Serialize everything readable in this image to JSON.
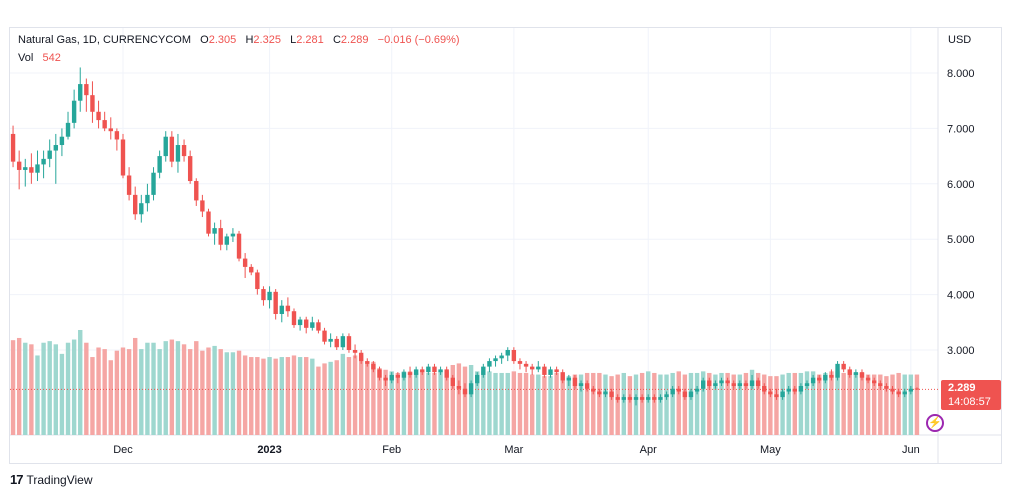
{
  "legend": {
    "symbol": "Natural Gas, 1D, CURRENCYCOM",
    "o_label": "O",
    "o_value": "2.305",
    "h_label": "H",
    "h_value": "2.325",
    "l_label": "L",
    "l_value": "2.281",
    "c_label": "C",
    "c_value": "2.289",
    "change": "−0.016 (−0.69%)",
    "vol_label": "Vol",
    "vol_value": "542"
  },
  "currency": "USD",
  "price_tag": {
    "price": "2.289",
    "countdown": "14:08:57"
  },
  "footer": {
    "logo_glyph": "17",
    "brand": "TradingView"
  },
  "flash_icon": "lightning-icon",
  "colors": {
    "up": "#26a69a",
    "down": "#ef5350",
    "up_vol": "#9ed7cf",
    "down_vol": "#f5a6a4",
    "grid": "#f0f3fa"
  },
  "chart_data": {
    "type": "candlestick",
    "title": "Natural Gas, 1D, CURRENCYCOM",
    "ylabel": "USD",
    "ylim": [
      1.6,
      8.7
    ],
    "yticks": [
      "8.000",
      "7.000",
      "6.000",
      "5.000",
      "4.000",
      "3.000"
    ],
    "xticks": [
      {
        "label": "Dec",
        "index": 18
      },
      {
        "label": "2023",
        "index": 42
      },
      {
        "label": "Feb",
        "index": 62
      },
      {
        "label": "Mar",
        "index": 82
      },
      {
        "label": "Apr",
        "index": 104
      },
      {
        "label": "May",
        "index": 124
      },
      {
        "label": "Jun",
        "index": 147
      }
    ],
    "grid": true,
    "last_price": 2.289,
    "ohlcv": [
      [
        6.9,
        7.05,
        6.3,
        6.4,
        2.98
      ],
      [
        6.4,
        6.6,
        5.9,
        6.25,
        3.05
      ],
      [
        6.25,
        6.45,
        5.95,
        6.3,
        2.9
      ],
      [
        6.3,
        6.55,
        6.0,
        6.2,
        2.85
      ],
      [
        6.2,
        6.6,
        6.05,
        6.35,
        2.5
      ],
      [
        6.35,
        6.6,
        6.1,
        6.45,
        2.9
      ],
      [
        6.45,
        6.8,
        6.3,
        6.6,
        2.95
      ],
      [
        6.6,
        6.9,
        6.0,
        6.7,
        2.85
      ],
      [
        6.7,
        7.0,
        6.5,
        6.85,
        2.55
      ],
      [
        6.85,
        7.3,
        6.8,
        7.1,
        2.9
      ],
      [
        7.1,
        7.7,
        7.0,
        7.5,
        3.0
      ],
      [
        7.5,
        8.1,
        7.3,
        7.8,
        3.3
      ],
      [
        7.8,
        7.9,
        7.3,
        7.6,
        2.9
      ],
      [
        7.6,
        7.85,
        7.1,
        7.3,
        2.45
      ],
      [
        7.3,
        7.5,
        7.0,
        7.15,
        2.75
      ],
      [
        7.15,
        7.3,
        6.95,
        7.0,
        2.7
      ],
      [
        7.0,
        7.2,
        6.8,
        6.95,
        2.35
      ],
      [
        6.95,
        7.0,
        6.6,
        6.8,
        2.65
      ],
      [
        6.8,
        6.9,
        6.1,
        6.15,
        2.75
      ],
      [
        6.15,
        6.3,
        5.7,
        5.8,
        2.7
      ],
      [
        5.8,
        5.95,
        5.35,
        5.45,
        3.05
      ],
      [
        5.45,
        5.8,
        5.3,
        5.65,
        2.7
      ],
      [
        5.65,
        6.0,
        5.5,
        5.8,
        2.9
      ],
      [
        5.8,
        6.3,
        5.7,
        6.2,
        2.9
      ],
      [
        6.2,
        6.6,
        6.1,
        6.5,
        2.7
      ],
      [
        6.5,
        6.95,
        6.4,
        6.85,
        2.95
      ],
      [
        6.85,
        6.95,
        6.3,
        6.4,
        3.0
      ],
      [
        6.4,
        6.9,
        6.2,
        6.7,
        2.95
      ],
      [
        6.7,
        6.8,
        6.4,
        6.5,
        2.85
      ],
      [
        6.5,
        6.6,
        6.0,
        6.05,
        2.7
      ],
      [
        6.05,
        6.1,
        5.6,
        5.7,
        2.95
      ],
      [
        5.7,
        5.8,
        5.4,
        5.5,
        2.65
      ],
      [
        5.5,
        5.55,
        5.05,
        5.1,
        2.75
      ],
      [
        5.1,
        5.3,
        4.9,
        5.2,
        2.8
      ],
      [
        5.2,
        5.35,
        4.8,
        4.9,
        2.7
      ],
      [
        4.9,
        5.1,
        4.8,
        5.05,
        2.6
      ],
      [
        5.05,
        5.2,
        4.95,
        5.1,
        2.6
      ],
      [
        5.1,
        5.15,
        4.6,
        4.65,
        2.65
      ],
      [
        4.65,
        4.75,
        4.3,
        4.5,
        2.5
      ],
      [
        4.5,
        4.55,
        4.35,
        4.4,
        2.45
      ],
      [
        4.4,
        4.45,
        4.0,
        4.1,
        2.45
      ],
      [
        4.1,
        4.15,
        3.8,
        3.9,
        2.4
      ],
      [
        3.9,
        4.15,
        3.75,
        4.05,
        2.45
      ],
      [
        4.05,
        4.1,
        3.55,
        3.65,
        2.4
      ],
      [
        3.65,
        3.9,
        3.5,
        3.8,
        2.45
      ],
      [
        3.8,
        3.95,
        3.6,
        3.7,
        2.45
      ],
      [
        3.7,
        3.75,
        3.4,
        3.45,
        2.5
      ],
      [
        3.45,
        3.6,
        3.35,
        3.55,
        2.45
      ],
      [
        3.55,
        3.6,
        3.3,
        3.4,
        2.45
      ],
      [
        3.4,
        3.6,
        3.35,
        3.5,
        2.4
      ],
      [
        3.5,
        3.55,
        3.3,
        3.35,
        2.15
      ],
      [
        3.35,
        3.4,
        3.1,
        3.15,
        2.25
      ],
      [
        3.15,
        3.3,
        3.05,
        3.2,
        2.3
      ],
      [
        3.2,
        3.25,
        3.0,
        3.05,
        2.35
      ],
      [
        3.05,
        3.3,
        3.0,
        3.25,
        2.55
      ],
      [
        3.25,
        3.3,
        2.95,
        3.0,
        2.45
      ],
      [
        3.0,
        3.1,
        2.85,
        2.95,
        2.5
      ],
      [
        2.95,
        3.0,
        2.75,
        2.8,
        2.5
      ],
      [
        2.8,
        2.85,
        2.7,
        2.75,
        2.25
      ],
      [
        2.75,
        2.8,
        2.6,
        2.65,
        2.3
      ],
      [
        2.65,
        2.7,
        2.45,
        2.5,
        2.1
      ],
      [
        2.5,
        2.55,
        2.35,
        2.45,
        2.05
      ],
      [
        2.45,
        2.6,
        2.4,
        2.55,
        2.0
      ],
      [
        2.55,
        2.6,
        2.4,
        2.5,
        1.95
      ],
      [
        2.5,
        2.65,
        2.45,
        2.6,
        2.0
      ],
      [
        2.6,
        2.7,
        2.5,
        2.55,
        2.0
      ],
      [
        2.55,
        2.7,
        2.5,
        2.65,
        1.95
      ],
      [
        2.65,
        2.7,
        2.55,
        2.6,
        2.0
      ],
      [
        2.6,
        2.75,
        2.55,
        2.7,
        1.95
      ],
      [
        2.7,
        2.75,
        2.55,
        2.6,
        1.95
      ],
      [
        2.6,
        2.7,
        2.55,
        2.65,
        2.0
      ],
      [
        2.65,
        2.7,
        2.45,
        2.5,
        2.0
      ],
      [
        2.5,
        2.55,
        2.3,
        2.35,
        2.2
      ],
      [
        2.35,
        2.45,
        2.2,
        2.3,
        2.25
      ],
      [
        2.3,
        2.4,
        2.15,
        2.2,
        2.15
      ],
      [
        2.2,
        2.45,
        2.15,
        2.4,
        2.2
      ],
      [
        2.4,
        2.6,
        2.35,
        2.55,
        2.0
      ],
      [
        2.55,
        2.75,
        2.5,
        2.7,
        2.0
      ],
      [
        2.7,
        2.85,
        2.6,
        2.8,
        2.0
      ],
      [
        2.8,
        2.9,
        2.7,
        2.85,
        1.95
      ],
      [
        2.85,
        2.95,
        2.75,
        2.9,
        1.95
      ],
      [
        2.9,
        3.05,
        2.8,
        3.0,
        1.95
      ],
      [
        3.0,
        3.05,
        2.75,
        2.8,
        2.0
      ],
      [
        2.8,
        2.85,
        2.65,
        2.75,
        1.95
      ],
      [
        2.75,
        2.8,
        2.6,
        2.7,
        1.95
      ],
      [
        2.7,
        2.75,
        2.55,
        2.65,
        1.9
      ],
      [
        2.65,
        2.8,
        2.6,
        2.7,
        1.9
      ],
      [
        2.7,
        2.75,
        2.5,
        2.55,
        1.85
      ],
      [
        2.55,
        2.7,
        2.5,
        2.65,
        1.85
      ],
      [
        2.65,
        2.7,
        2.55,
        2.6,
        1.95
      ],
      [
        2.6,
        2.65,
        2.4,
        2.45,
        1.9
      ],
      [
        2.45,
        2.55,
        2.35,
        2.5,
        1.85
      ],
      [
        2.5,
        2.55,
        2.3,
        2.35,
        1.9
      ],
      [
        2.35,
        2.45,
        2.25,
        2.4,
        1.9
      ],
      [
        2.4,
        2.45,
        2.25,
        2.3,
        1.95
      ],
      [
        2.3,
        2.35,
        2.2,
        2.25,
        1.95
      ],
      [
        2.25,
        2.3,
        2.15,
        2.2,
        1.95
      ],
      [
        2.2,
        2.3,
        2.15,
        2.25,
        1.9
      ],
      [
        2.25,
        2.3,
        2.1,
        2.15,
        1.85
      ],
      [
        2.15,
        2.2,
        2.05,
        2.1,
        1.9
      ],
      [
        2.1,
        2.2,
        2.05,
        2.15,
        1.95
      ],
      [
        2.15,
        2.2,
        2.05,
        2.1,
        1.85
      ],
      [
        2.1,
        2.2,
        2.0,
        2.15,
        1.9
      ],
      [
        2.15,
        2.2,
        2.05,
        2.1,
        1.95
      ],
      [
        2.1,
        2.2,
        2.05,
        2.15,
        2.0
      ],
      [
        2.15,
        2.2,
        2.05,
        2.1,
        1.95
      ],
      [
        2.1,
        2.2,
        2.05,
        2.15,
        1.9
      ],
      [
        2.15,
        2.25,
        2.1,
        2.2,
        1.9
      ],
      [
        2.2,
        2.35,
        2.15,
        2.3,
        1.95
      ],
      [
        2.3,
        2.35,
        2.2,
        2.25,
        2.0
      ],
      [
        2.25,
        2.3,
        2.1,
        2.15,
        1.9
      ],
      [
        2.15,
        2.3,
        2.1,
        2.25,
        1.95
      ],
      [
        2.25,
        2.35,
        2.2,
        2.3,
        1.95
      ],
      [
        2.3,
        2.5,
        2.25,
        2.45,
        2.0
      ],
      [
        2.45,
        2.5,
        2.3,
        2.35,
        1.95
      ],
      [
        2.35,
        2.45,
        2.3,
        2.4,
        1.9
      ],
      [
        2.4,
        2.5,
        2.35,
        2.45,
        1.95
      ],
      [
        2.45,
        2.5,
        2.35,
        2.4,
        1.95
      ],
      [
        2.4,
        2.45,
        2.3,
        2.35,
        1.9
      ],
      [
        2.35,
        2.45,
        2.3,
        2.4,
        1.9
      ],
      [
        2.4,
        2.45,
        2.3,
        2.35,
        1.95
      ],
      [
        2.35,
        2.55,
        2.3,
        2.45,
        2.05
      ],
      [
        2.45,
        2.5,
        2.3,
        2.35,
        1.95
      ],
      [
        2.35,
        2.4,
        2.2,
        2.25,
        1.9
      ],
      [
        2.25,
        2.3,
        2.15,
        2.2,
        1.85
      ],
      [
        2.2,
        2.3,
        2.1,
        2.15,
        1.85
      ],
      [
        2.15,
        2.3,
        2.1,
        2.25,
        1.9
      ],
      [
        2.25,
        2.35,
        2.2,
        2.3,
        1.95
      ],
      [
        2.3,
        2.35,
        2.2,
        2.25,
        1.95
      ],
      [
        2.25,
        2.4,
        2.2,
        2.35,
        1.95
      ],
      [
        2.35,
        2.45,
        2.3,
        2.4,
        2.0
      ],
      [
        2.4,
        2.55,
        2.35,
        2.5,
        2.0
      ],
      [
        2.5,
        2.55,
        2.4,
        2.45,
        1.9
      ],
      [
        2.45,
        2.6,
        2.4,
        2.55,
        1.95
      ],
      [
        2.55,
        2.65,
        2.45,
        2.5,
        2.0
      ],
      [
        2.5,
        2.8,
        2.45,
        2.75,
        2.0
      ],
      [
        2.75,
        2.8,
        2.6,
        2.65,
        1.95
      ],
      [
        2.65,
        2.7,
        2.5,
        2.55,
        1.9
      ],
      [
        2.55,
        2.65,
        2.5,
        2.6,
        1.95
      ],
      [
        2.6,
        2.65,
        2.45,
        2.5,
        1.95
      ],
      [
        2.5,
        2.55,
        2.4,
        2.45,
        1.9
      ],
      [
        2.45,
        2.5,
        2.35,
        2.4,
        1.9
      ],
      [
        2.4,
        2.45,
        2.3,
        2.35,
        1.9
      ],
      [
        2.35,
        2.4,
        2.25,
        2.3,
        1.85
      ],
      [
        2.3,
        2.35,
        2.2,
        2.25,
        1.9
      ],
      [
        2.25,
        2.3,
        2.15,
        2.2,
        1.95
      ],
      [
        2.2,
        2.3,
        2.15,
        2.25,
        1.9
      ],
      [
        2.25,
        2.35,
        2.2,
        2.3,
        1.9
      ],
      [
        2.305,
        2.325,
        2.281,
        2.289,
        1.9
      ]
    ]
  }
}
